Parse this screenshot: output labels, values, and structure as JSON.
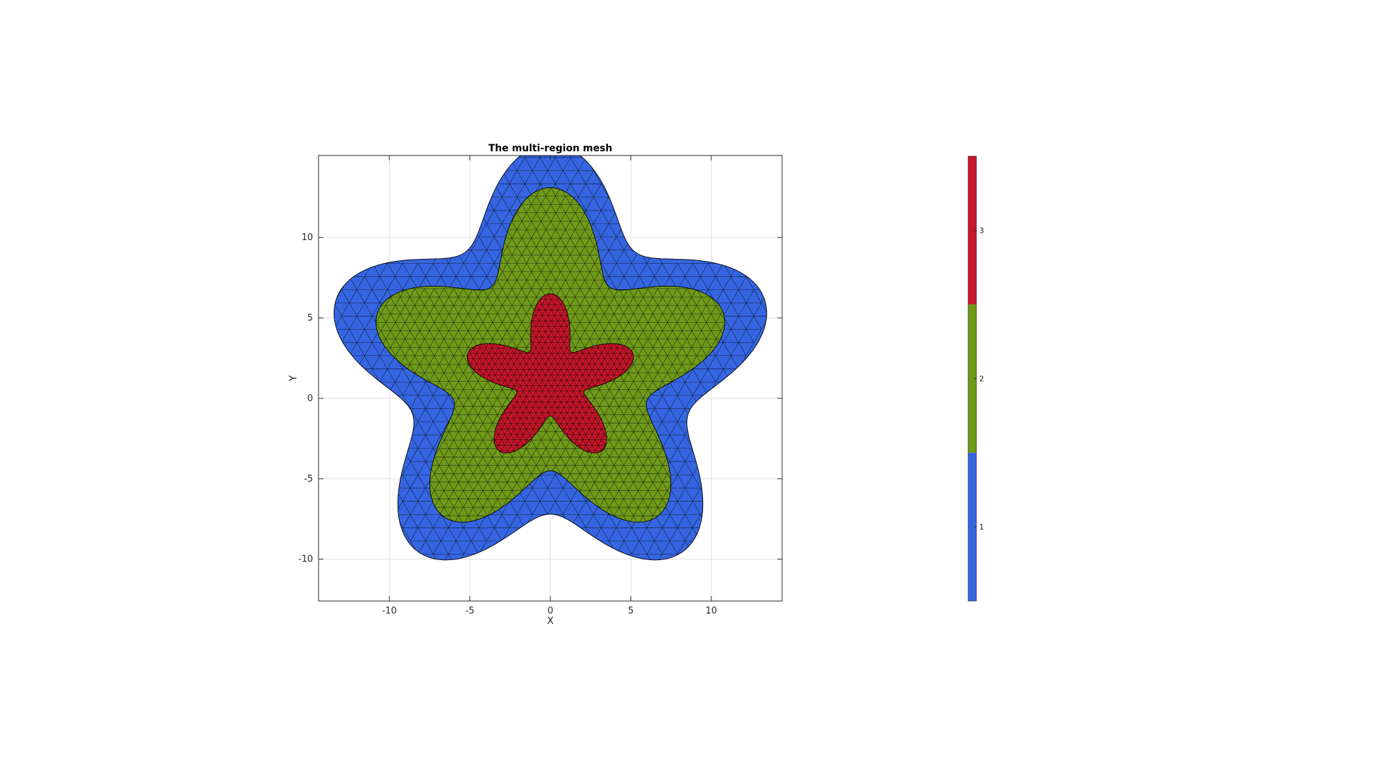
{
  "chart_data": {
    "type": "mesh",
    "title": "The multi-region mesh",
    "xlabel": "X",
    "ylabel": "Y",
    "xlim": [
      -14.4,
      14.4
    ],
    "ylim": [
      -12.6,
      15.1
    ],
    "xticks": [
      -10,
      -5,
      0,
      5,
      10
    ],
    "yticks": [
      -10,
      -5,
      0,
      5,
      10
    ],
    "grid": true,
    "edge_color": "#000000",
    "regions": [
      {
        "name": "1",
        "color": "#3565e0",
        "shape": {
          "cy": 1.8,
          "base": 11.5,
          "amp": 2.5,
          "lobes": 5
        }
      },
      {
        "name": "2",
        "color": "#6f9a1a",
        "shape": {
          "cy": 1.8,
          "base": 8.8,
          "amp": 2.5,
          "lobes": 5
        }
      },
      {
        "name": "3",
        "color": "#c8162a",
        "shape": {
          "cy": 1.1,
          "base": 3.8,
          "amp": 1.6,
          "lobes": 5
        }
      }
    ],
    "colorbar": {
      "ticks": [
        "1",
        "2",
        "3"
      ],
      "colors": [
        "#3565e0",
        "#6f9a1a",
        "#c8162a"
      ]
    }
  }
}
